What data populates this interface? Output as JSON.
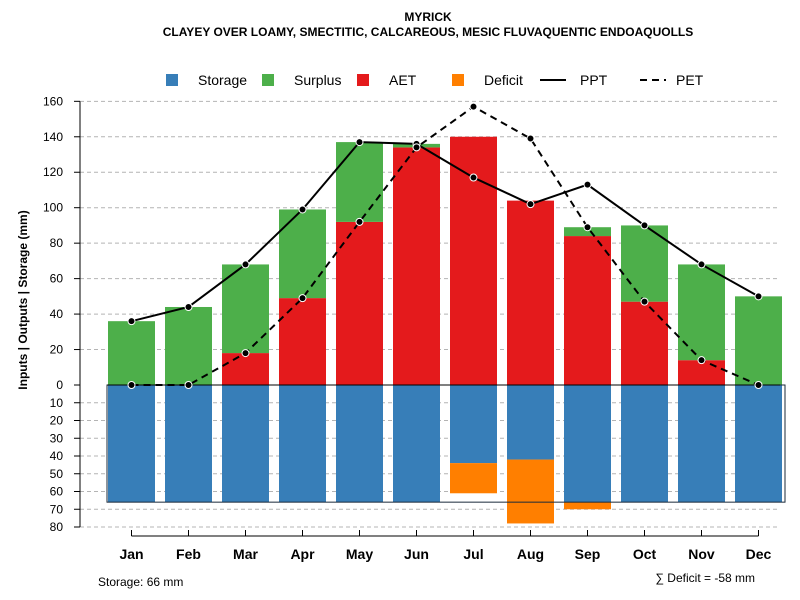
{
  "chart_data": {
    "type": "bar",
    "title": "MYRICK",
    "subtitle": "CLAYEY OVER LOAMY, SMECTITIC, CALCAREOUS, MESIC FLUVAQUENTIC ENDOAQUOLLS",
    "ylabel": "Inputs | Outputs | Storage    (mm)",
    "categories": [
      "Jan",
      "Feb",
      "Mar",
      "Apr",
      "May",
      "Jun",
      "Jul",
      "Aug",
      "Sep",
      "Oct",
      "Nov",
      "Dec"
    ],
    "upper_ylim": [
      0,
      160
    ],
    "upper_ticks": [
      "0",
      "20",
      "40",
      "60",
      "80",
      "100",
      "120",
      "140",
      "160"
    ],
    "lower_ylim": [
      0,
      80
    ],
    "lower_ticks": [
      "10",
      "20",
      "30",
      "40",
      "50",
      "60",
      "70",
      "80"
    ],
    "series": [
      {
        "name": "AET",
        "color": "#E41A1C",
        "values": [
          0,
          0,
          18,
          49,
          92,
          134,
          140,
          104,
          84,
          47,
          14,
          0
        ]
      },
      {
        "name": "Surplus",
        "color": "#4DAF4A",
        "values": [
          36,
          44,
          50,
          50,
          45,
          2,
          0,
          0,
          5,
          43,
          54,
          50
        ]
      },
      {
        "name": "Storage",
        "color": "#377EB8",
        "values": [
          66,
          66,
          66,
          66,
          66,
          66,
          44,
          42,
          66,
          66,
          66,
          66
        ]
      },
      {
        "name": "Deficit",
        "color": "#FF7F00",
        "values": [
          0,
          0,
          0,
          0,
          0,
          0,
          17,
          36,
          4,
          0,
          0,
          0
        ]
      },
      {
        "name": "PPT",
        "color": "#000000",
        "style": "solid",
        "values": [
          36,
          44,
          68,
          99,
          137,
          136,
          117,
          102,
          113,
          90,
          68,
          50
        ]
      },
      {
        "name": "PET",
        "color": "#000000",
        "style": "dashed",
        "values": [
          0,
          0,
          18,
          49,
          92,
          134,
          157,
          139,
          89,
          47,
          14,
          0
        ]
      }
    ],
    "legend": [
      {
        "label": "Storage",
        "color": "#377EB8",
        "kind": "box"
      },
      {
        "label": "Surplus",
        "color": "#4DAF4A",
        "kind": "box"
      },
      {
        "label": "AET",
        "color": "#E41A1C",
        "kind": "box"
      },
      {
        "label": "Deficit",
        "color": "#FF7F00",
        "kind": "box"
      },
      {
        "label": "PPT",
        "color": "#000000",
        "kind": "solid"
      },
      {
        "label": "PET",
        "color": "#000000",
        "kind": "dashed"
      }
    ],
    "storage_capacity": 66,
    "storage_note": "Storage: 66 mm",
    "deficit_note": "∑ Deficit = -58 mm",
    "grid": true
  }
}
